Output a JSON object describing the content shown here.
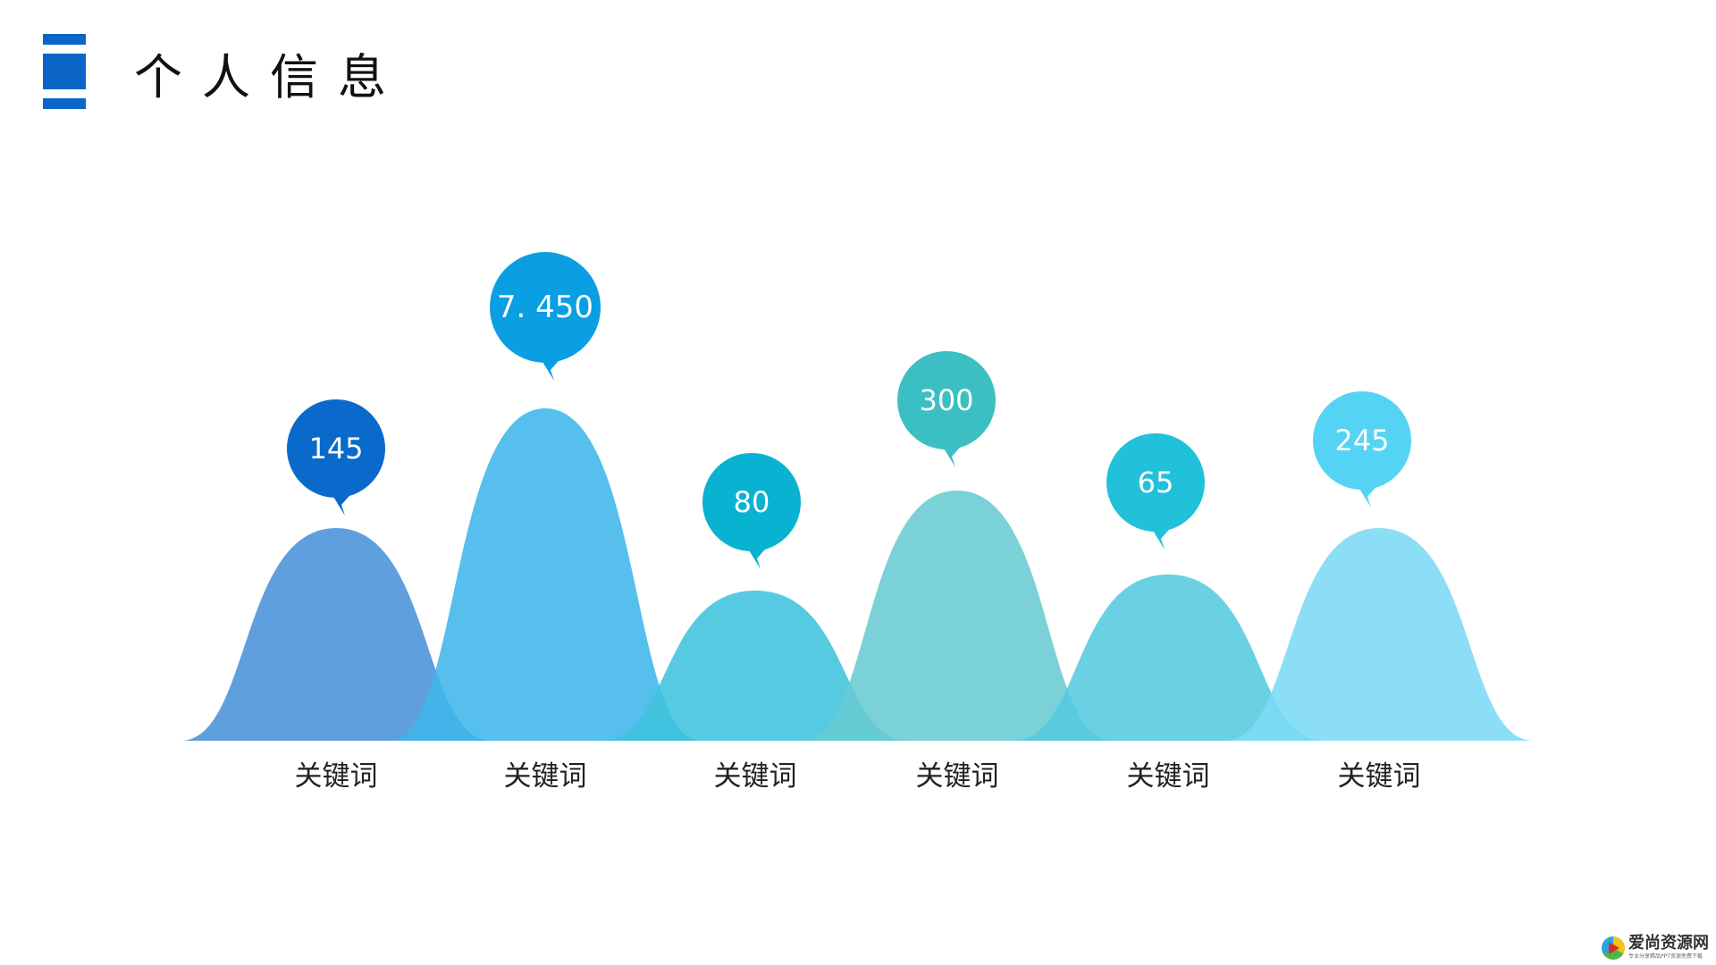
{
  "header": {
    "title": "个人信息",
    "accent_color": "#0b66c8"
  },
  "chart_data": {
    "type": "area",
    "categories": [
      "关键词",
      "关键词",
      "关键词",
      "关键词",
      "关键词",
      "关键词"
    ],
    "values": [
      145,
      7.45,
      80,
      300,
      65,
      245
    ],
    "value_labels": [
      "145",
      "7. 450",
      "80",
      "300",
      "65",
      "245"
    ],
    "mountain_colors": [
      "#4a92d8",
      "#3fb6ea",
      "#3fc3dd",
      "#68cbd2",
      "#55cadf",
      "#7cdaf6"
    ],
    "bubble_colors": [
      "#0a6acb",
      "#0a9ee2",
      "#0ab2d2",
      "#3cbfc2",
      "#22c1da",
      "#55d3f5"
    ],
    "legend": "none",
    "grid": false
  },
  "watermark": {
    "text": "爱尚资源网",
    "subtext": "专业分享精品PPT资源免费下载"
  }
}
